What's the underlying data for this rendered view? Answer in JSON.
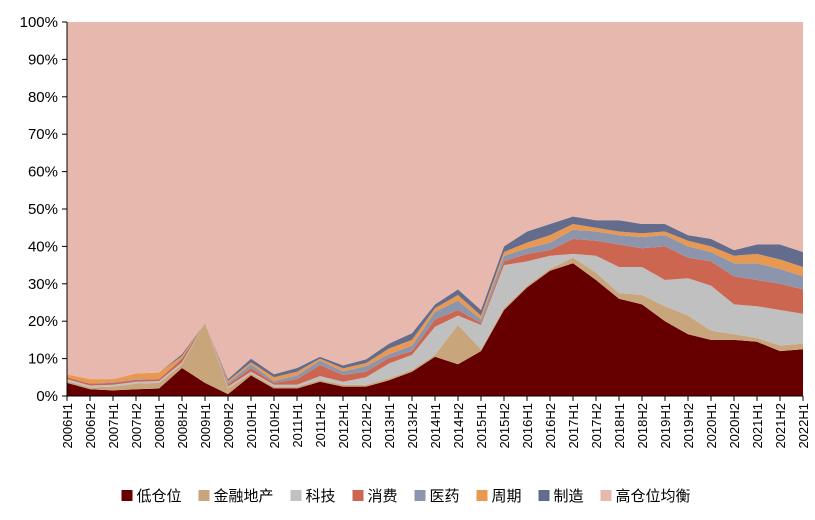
{
  "chart_data": {
    "type": "area",
    "stacked": true,
    "title": "",
    "xlabel": "",
    "ylabel": "",
    "ylim": [
      0,
      100
    ],
    "y_ticks": [
      "0%",
      "10%",
      "20%",
      "30%",
      "40%",
      "50%",
      "60%",
      "70%",
      "80%",
      "90%",
      "100%"
    ],
    "grid": false,
    "legend_position": "bottom",
    "categories": [
      "2006H1",
      "2006H2",
      "2007H1",
      "2007H2",
      "2008H1",
      "2008H2",
      "2009H1",
      "2009H2",
      "2010H1",
      "2010H2",
      "2011H1",
      "2011H2",
      "2012H1",
      "2012H2",
      "2013H1",
      "2013H2",
      "2014H1",
      "2014H2",
      "2015H1",
      "2015H2",
      "2016H1",
      "2016H2",
      "2017H1",
      "2017H2",
      "2018H1",
      "2018H2",
      "2019H1",
      "2019H2",
      "2020H1",
      "2020H2",
      "2021H1",
      "2021H2",
      "2022H1"
    ],
    "series": [
      {
        "name": "低仓位",
        "color": "#660000",
        "values": [
          3.5,
          1.8,
          1.5,
          1.8,
          2.0,
          7.5,
          3.5,
          0.5,
          5.5,
          2.0,
          2.0,
          3.8,
          2.5,
          2.5,
          4.2,
          6.5,
          10.5,
          8.5,
          12.0,
          23.0,
          29.0,
          33.5,
          35.5,
          31.0,
          26.0,
          24.5,
          20.0,
          16.5,
          15.0,
          15.0,
          14.5,
          12.0,
          12.5
        ]
      },
      {
        "name": "金融地产",
        "color": "#c8a57a",
        "values": [
          0.5,
          0.5,
          1.0,
          1.5,
          1.5,
          1.0,
          16.0,
          1.5,
          0.5,
          0.5,
          0.5,
          0.5,
          0.5,
          0.5,
          0.5,
          0.5,
          0.5,
          10.5,
          0.5,
          0.5,
          0.5,
          0.5,
          1.5,
          2.0,
          1.5,
          2.5,
          4.0,
          5.0,
          2.5,
          1.5,
          1.0,
          1.5,
          1.5
        ]
      },
      {
        "name": "科技",
        "color": "#c0c0c0",
        "values": [
          0.5,
          0.5,
          0.5,
          0.5,
          0.5,
          0.5,
          0.0,
          0.5,
          0.5,
          0.5,
          0.5,
          1.0,
          0.8,
          2.0,
          4.0,
          4.0,
          7.5,
          2.5,
          6.5,
          11.5,
          6.5,
          3.5,
          1.0,
          4.5,
          7.0,
          7.5,
          7.0,
          10.0,
          12.0,
          8.0,
          8.5,
          9.5,
          8.0
        ]
      },
      {
        "name": "消费",
        "color": "#cc6650",
        "values": [
          0.5,
          0.5,
          0.5,
          0.5,
          0.5,
          1.0,
          0.0,
          0.5,
          1.0,
          0.5,
          1.5,
          3.0,
          1.8,
          1.5,
          1.5,
          1.0,
          2.0,
          1.5,
          0.5,
          1.0,
          2.0,
          1.5,
          4.0,
          4.0,
          6.0,
          5.0,
          9.0,
          5.5,
          6.5,
          7.5,
          7.0,
          7.0,
          6.5
        ]
      },
      {
        "name": "医药",
        "color": "#8d95ad",
        "values": [
          0.0,
          0.0,
          0.2,
          0.2,
          0.0,
          0.2,
          0.0,
          0.5,
          1.0,
          0.5,
          1.0,
          1.2,
          1.0,
          1.5,
          1.0,
          1.5,
          2.0,
          2.5,
          1.0,
          1.5,
          1.5,
          2.0,
          2.5,
          2.5,
          2.5,
          3.0,
          3.0,
          3.0,
          2.5,
          3.5,
          4.5,
          4.0,
          3.5
        ]
      },
      {
        "name": "周期",
        "color": "#e89850",
        "values": [
          0.8,
          1.2,
          0.8,
          1.5,
          1.8,
          0.5,
          0.0,
          0.5,
          0.5,
          1.0,
          1.0,
          0.5,
          0.8,
          0.8,
          1.5,
          1.5,
          1.0,
          1.5,
          1.0,
          1.0,
          1.5,
          2.0,
          1.5,
          1.0,
          1.0,
          1.0,
          1.0,
          1.5,
          1.5,
          2.0,
          2.5,
          2.5,
          2.5
        ]
      },
      {
        "name": "制造",
        "color": "#636c8c",
        "values": [
          0.0,
          0.0,
          0.0,
          0.0,
          0.0,
          0.5,
          0.0,
          0.5,
          1.0,
          0.8,
          1.0,
          0.5,
          0.8,
          1.0,
          1.3,
          1.8,
          1.0,
          1.5,
          1.5,
          1.5,
          3.0,
          3.0,
          2.0,
          2.0,
          3.0,
          2.5,
          2.0,
          1.5,
          2.0,
          1.5,
          2.5,
          4.0,
          4.0
        ]
      },
      {
        "name": "高仓位均衡",
        "color": "#e7b8ae",
        "fill_to_top": true
      }
    ]
  }
}
